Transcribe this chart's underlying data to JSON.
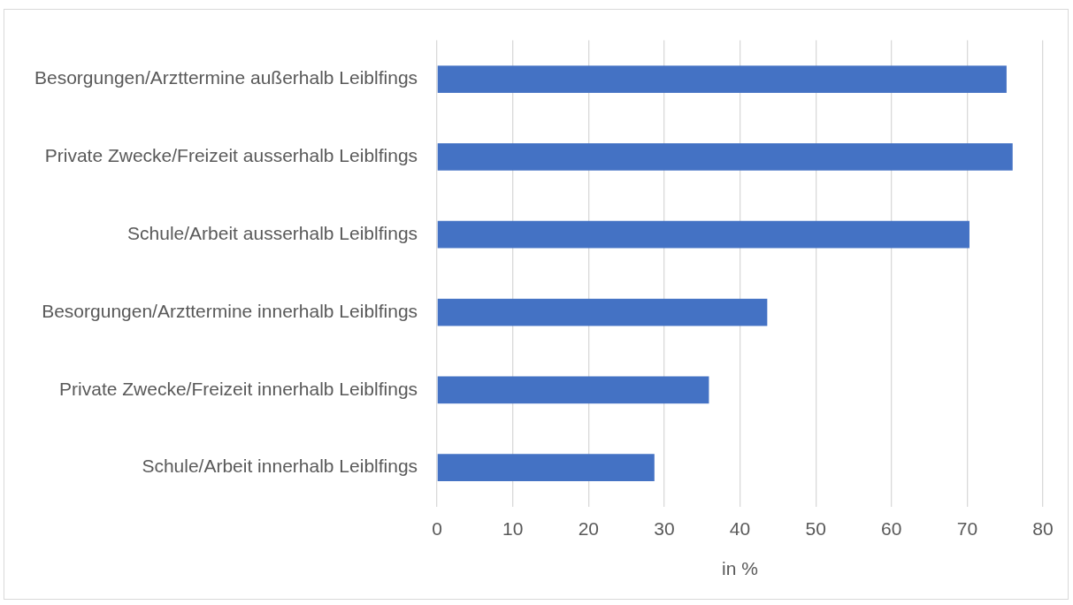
{
  "chart_data": {
    "type": "bar",
    "orientation": "horizontal",
    "xlabel": "in %",
    "categories": [
      "Besorgungen/Arzttermine außerhalb Leiblfings",
      "Private Zwecke/Freizeit ausserhalb Leiblfings",
      "Schule/Arbeit ausserhalb Leiblfings",
      "Besorgungen/Arzttermine innerhalb Leiblfings",
      "Private Zwecke/Freizeit innerhalb Leiblfings",
      "Schule/Arbeit innerhalb Leiblfings"
    ],
    "values": [
      75.2,
      76.0,
      70.3,
      43.6,
      35.9,
      28.7
    ],
    "color": "#4472c4",
    "xlim": [
      0,
      80
    ],
    "xticks": [
      0,
      10,
      20,
      30,
      40,
      50,
      60,
      70,
      80
    ],
    "grid": "x"
  }
}
